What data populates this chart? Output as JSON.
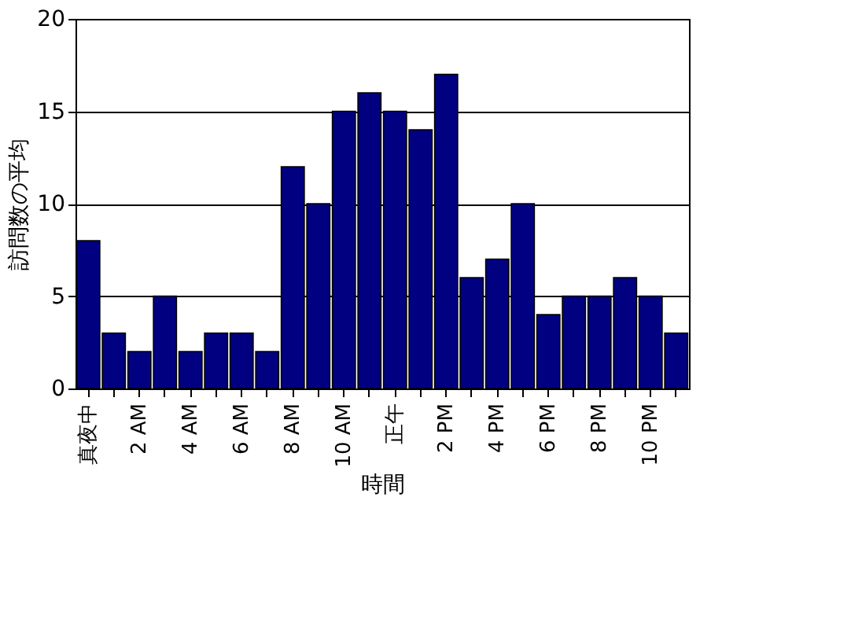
{
  "chart_data": {
    "type": "bar",
    "xlabel": "時間",
    "ylabel": "訪問数の平均",
    "categories": [
      "真夜中",
      null,
      "2 AM",
      null,
      "4 AM",
      null,
      "6 AM",
      null,
      "8 AM",
      null,
      "10 AM",
      null,
      "正午",
      null,
      "2 PM",
      null,
      "4 PM",
      null,
      "6 PM",
      null,
      "8 PM",
      null,
      "10 PM",
      null
    ],
    "values": [
      8,
      3,
      2,
      5,
      2,
      3,
      3,
      2,
      12,
      10,
      15,
      16,
      15,
      14,
      17,
      6,
      7,
      10,
      4,
      5,
      5,
      6,
      5,
      3
    ],
    "color": "#000080",
    "ylim": [
      0,
      20
    ],
    "yticks": [
      0,
      5,
      10,
      15,
      20
    ],
    "grid": "y"
  }
}
